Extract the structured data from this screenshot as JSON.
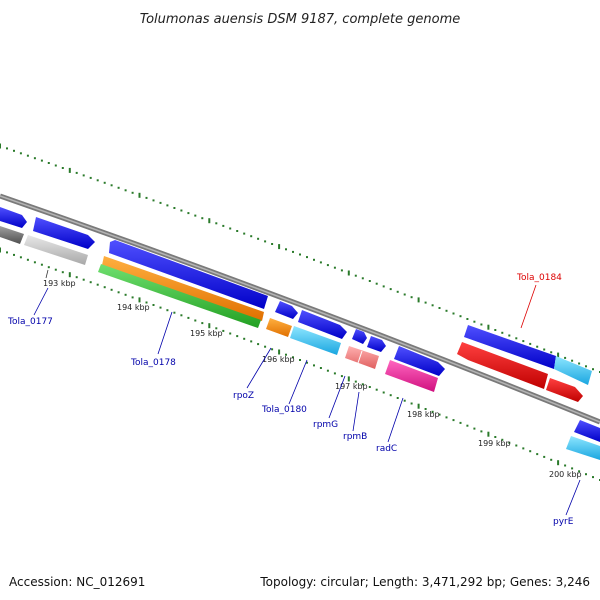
{
  "title": "Tolumonas auensis DSM 9187, complete genome",
  "footer": {
    "accession": "Accession: NC_012691",
    "summary": "Topology: circular; Length: 3,471,292 bp; Genes: 3,246"
  },
  "colors": {
    "backbone": "#808080",
    "tick": "#2a7a2a",
    "label_default": "#0000aa",
    "label_highlight": "#dd0000"
  },
  "scale_labels": [
    "193 kbp",
    "194 kbp",
    "195 kbp",
    "196 kbp",
    "197 kbp",
    "198 kbp",
    "199 kbp",
    "200 kbp"
  ],
  "genes": [
    {
      "label": "Tola_0177",
      "color": "#0000aa"
    },
    {
      "label": "Tola_0178",
      "color": "#0000aa"
    },
    {
      "label": "rpoZ",
      "color": "#0000aa"
    },
    {
      "label": "Tola_0180",
      "color": "#0000aa"
    },
    {
      "label": "rpmG",
      "color": "#0000aa"
    },
    {
      "label": "rpmB",
      "color": "#0000aa"
    },
    {
      "label": "radC",
      "color": "#0000aa"
    },
    {
      "label": "Tola_0184",
      "color": "#dd0000"
    },
    {
      "label": "pyrE",
      "color": "#0000aa"
    }
  ]
}
